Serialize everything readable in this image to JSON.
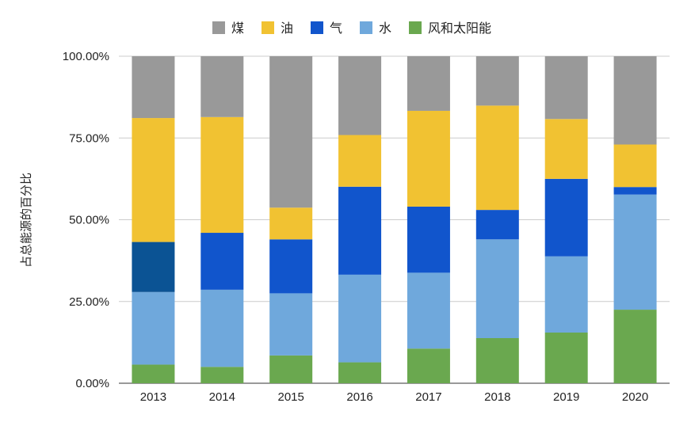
{
  "chart_data": {
    "type": "bar",
    "stacked": true,
    "percent": true,
    "ylabel": "占总能源的百分比",
    "ylim": [
      0,
      100
    ],
    "ytick_labels": [
      "0.00%",
      "25.00%",
      "50.00%",
      "75.00%",
      "100.00%"
    ],
    "ytick_values": [
      0,
      25,
      50,
      75,
      100
    ],
    "grid": true,
    "legend_position": "top",
    "categories": [
      "2013",
      "2014",
      "2015",
      "2016",
      "2017",
      "2018",
      "2019",
      "2020"
    ],
    "series": [
      {
        "name": "风和太阳能",
        "color": "#6aa84f",
        "values": [
          5.7,
          5.0,
          8.5,
          6.4,
          10.6,
          13.8,
          15.5,
          22.5
        ]
      },
      {
        "name": "水",
        "color": "#6fa8dc",
        "values": [
          22.2,
          23.6,
          19.0,
          26.8,
          23.2,
          30.2,
          23.3,
          35.2
        ]
      },
      {
        "name": "气",
        "color": "#1155cc",
        "values": [
          15.3,
          17.4,
          16.5,
          26.9,
          20.2,
          9.0,
          23.7,
          2.3
        ]
      },
      {
        "name": "油",
        "color": "#f1c232",
        "values": [
          37.9,
          35.4,
          9.7,
          15.8,
          29.3,
          31.9,
          18.3,
          13.0
        ]
      },
      {
        "name": "煤",
        "color": "#999999",
        "values": [
          18.9,
          18.6,
          46.3,
          24.1,
          16.7,
          15.1,
          19.2,
          27.0
        ]
      }
    ],
    "point_color_overrides": [
      {
        "series": "气",
        "category": "2013",
        "color": "#0b5394"
      }
    ]
  },
  "legend": {
    "items": [
      {
        "name": "煤",
        "color": "#999999"
      },
      {
        "name": "油",
        "color": "#f1c232"
      },
      {
        "name": "气",
        "color": "#1155cc"
      },
      {
        "name": "水",
        "color": "#6fa8dc"
      },
      {
        "name": "风和太阳能",
        "color": "#6aa84f"
      }
    ]
  }
}
